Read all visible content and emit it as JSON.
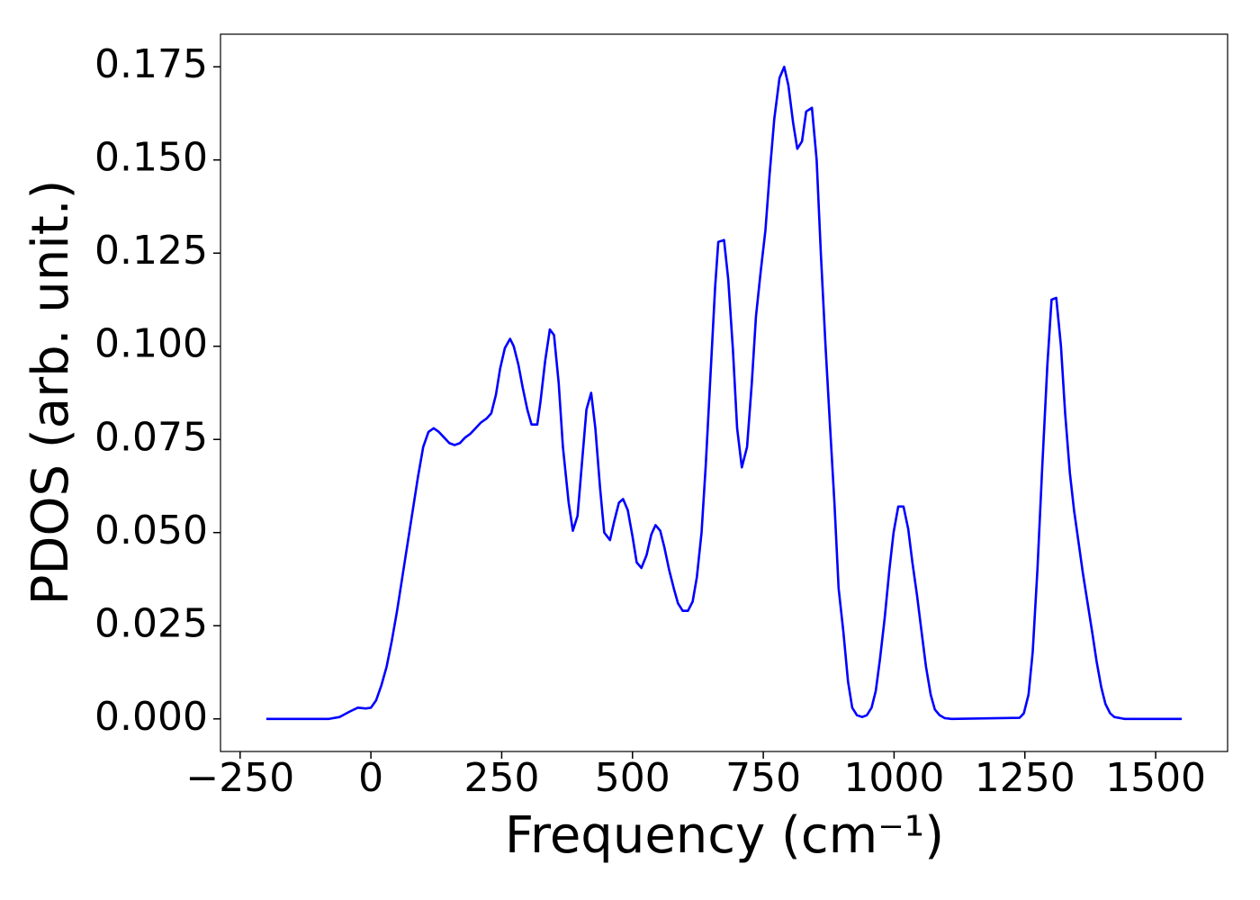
{
  "chart_data": {
    "type": "line",
    "xlabel": "Frequency (cm⁻¹)",
    "ylabel": "PDOS (arb. unit.)",
    "x": [
      -200,
      -100,
      -80,
      -60,
      -40,
      -25,
      -10,
      0,
      10,
      20,
      30,
      40,
      50,
      60,
      70,
      80,
      90,
      100,
      110,
      120,
      130,
      140,
      150,
      160,
      170,
      180,
      190,
      200,
      210,
      221,
      230,
      239,
      247,
      256,
      266,
      273,
      282,
      290,
      299,
      307,
      318,
      324,
      333,
      342,
      350,
      359,
      367,
      378,
      386,
      395,
      403,
      412,
      421,
      429,
      438,
      446,
      457,
      465,
      474,
      482,
      491,
      500,
      508,
      517,
      527,
      536,
      544,
      553,
      561,
      570,
      579,
      587,
      596,
      606,
      615,
      623,
      632,
      640,
      649,
      658,
      664,
      675,
      683,
      692,
      700,
      709,
      719,
      728,
      736,
      745,
      754,
      762,
      771,
      781,
      790,
      798,
      807,
      815,
      824,
      832,
      843,
      852,
      860,
      869,
      877,
      886,
      894,
      903,
      912,
      920,
      929,
      939,
      948,
      957,
      965,
      973,
      982,
      991,
      999,
      1008,
      1018,
      1027,
      1035,
      1044,
      1052,
      1061,
      1070,
      1078,
      1087,
      1097,
      1110,
      1240,
      1248,
      1257,
      1265,
      1274,
      1283,
      1293,
      1301,
      1310,
      1319,
      1327,
      1336,
      1344,
      1353,
      1361,
      1370,
      1379,
      1387,
      1396,
      1404,
      1413,
      1421,
      1440,
      1550
    ],
    "series": [
      {
        "color": "#0000ff",
        "values": [
          0,
          0,
          0,
          0.0005,
          0.002,
          0.003,
          0.0028,
          0.003,
          0.005,
          0.009,
          0.014,
          0.021,
          0.029,
          0.038,
          0.047,
          0.056,
          0.065,
          0.073,
          0.077,
          0.078,
          0.077,
          0.0755,
          0.074,
          0.0735,
          0.074,
          0.0755,
          0.0765,
          0.078,
          0.0795,
          0.0806,
          0.082,
          0.087,
          0.094,
          0.0995,
          0.102,
          0.1,
          0.095,
          0.089,
          0.083,
          0.079,
          0.079,
          0.085,
          0.096,
          0.1045,
          0.103,
          0.09,
          0.073,
          0.058,
          0.0505,
          0.0545,
          0.068,
          0.083,
          0.0875,
          0.078,
          0.062,
          0.05,
          0.048,
          0.053,
          0.058,
          0.059,
          0.056,
          0.049,
          0.042,
          0.0405,
          0.044,
          0.0495,
          0.052,
          0.0505,
          0.046,
          0.04,
          0.035,
          0.031,
          0.029,
          0.029,
          0.0315,
          0.038,
          0.05,
          0.068,
          0.092,
          0.116,
          0.128,
          0.1285,
          0.118,
          0.099,
          0.078,
          0.0675,
          0.073,
          0.09,
          0.108,
          0.12,
          0.131,
          0.146,
          0.161,
          0.172,
          0.175,
          0.17,
          0.16,
          0.153,
          0.155,
          0.163,
          0.164,
          0.15,
          0.125,
          0.1,
          0.08,
          0.058,
          0.035,
          0.0235,
          0.01,
          0.003,
          0.001,
          0.0005,
          0.001,
          0.003,
          0.0075,
          0.016,
          0.027,
          0.04,
          0.05,
          0.057,
          0.057,
          0.051,
          0.042,
          0.033,
          0.024,
          0.014,
          0.0065,
          0.0025,
          0.001,
          0.0002,
          0,
          0.0003,
          0.0015,
          0.0065,
          0.018,
          0.04,
          0.067,
          0.095,
          0.1125,
          0.113,
          0.1,
          0.082,
          0.066,
          0.056,
          0.047,
          0.039,
          0.031,
          0.023,
          0.0155,
          0.0085,
          0.004,
          0.0015,
          0.0005,
          0,
          0
        ]
      }
    ],
    "xlim": [
      -287.5,
      1637.5
    ],
    "ylim": [
      -0.00875,
      0.18375
    ],
    "xticks": [
      {
        "value": -250,
        "label": "−250"
      },
      0,
      250,
      500,
      750,
      1000,
      1250,
      1500
    ],
    "yticks": [
      {
        "value": 0,
        "label": "0.000"
      },
      0.025,
      {
        "value": 0.05,
        "label": "0.050"
      },
      0.075,
      {
        "value": 0.1,
        "label": "0.100"
      },
      0.125,
      {
        "value": 0.15,
        "label": "0.150"
      },
      0.175
    ],
    "grid": false
  }
}
